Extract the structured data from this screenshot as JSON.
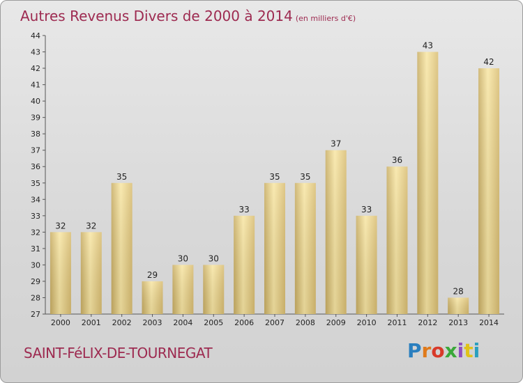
{
  "header": {
    "title": "Autres Revenus Divers de 2000 à 2014",
    "subtitle": "(en milliers d'€)"
  },
  "footer": {
    "commune": "SAINT-FéLIX-DE-TOURNEGAT",
    "logo_text": "Proxiti"
  },
  "colors": {
    "title": "#9d2a50",
    "bar_light": "#f7e3a0",
    "bar_dark": "#c8ad62"
  },
  "chart_data": {
    "type": "bar",
    "title": "Autres Revenus Divers de 2000 à 2014",
    "subtitle": "(en milliers d'€)",
    "categories": [
      "2000",
      "2001",
      "2002",
      "2003",
      "2004",
      "2005",
      "2006",
      "2007",
      "2008",
      "2009",
      "2010",
      "2011",
      "2012",
      "2013",
      "2014"
    ],
    "values": [
      32,
      32,
      35,
      29,
      30,
      30,
      33,
      35,
      35,
      37,
      33,
      36,
      43,
      28,
      42
    ],
    "ylim": [
      27,
      44
    ],
    "yticks": [
      27,
      28,
      29,
      30,
      31,
      32,
      33,
      34,
      35,
      36,
      37,
      38,
      39,
      40,
      41,
      42,
      43,
      44
    ],
    "grid": false,
    "data_labels": true
  }
}
